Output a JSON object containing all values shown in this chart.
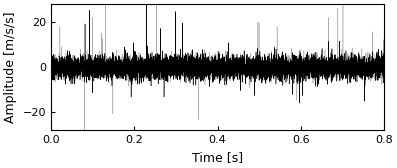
{
  "title": "",
  "xlabel": "Time [s]",
  "ylabel": "Amplitude [m/s/s]",
  "xlim": [
    0,
    0.8
  ],
  "ylim": [
    -28,
    28
  ],
  "yticks": [
    -20,
    0,
    20
  ],
  "xticks": [
    0,
    0.2,
    0.4,
    0.6,
    0.8
  ],
  "signal_duration": 0.8,
  "fs": 8000,
  "color_ch1": "#000000",
  "color_ch2": "#aaaaaa",
  "line_width": 0.35,
  "background_color": "#ffffff",
  "spine_color": "#000000",
  "tick_fontsize": 8,
  "label_fontsize": 9,
  "seed1": 7,
  "seed2": 13,
  "base_amplitude": 2.5,
  "spike_amplitude": 18.0,
  "spike_rate": 0.003,
  "noise_amplitude": 0.8
}
